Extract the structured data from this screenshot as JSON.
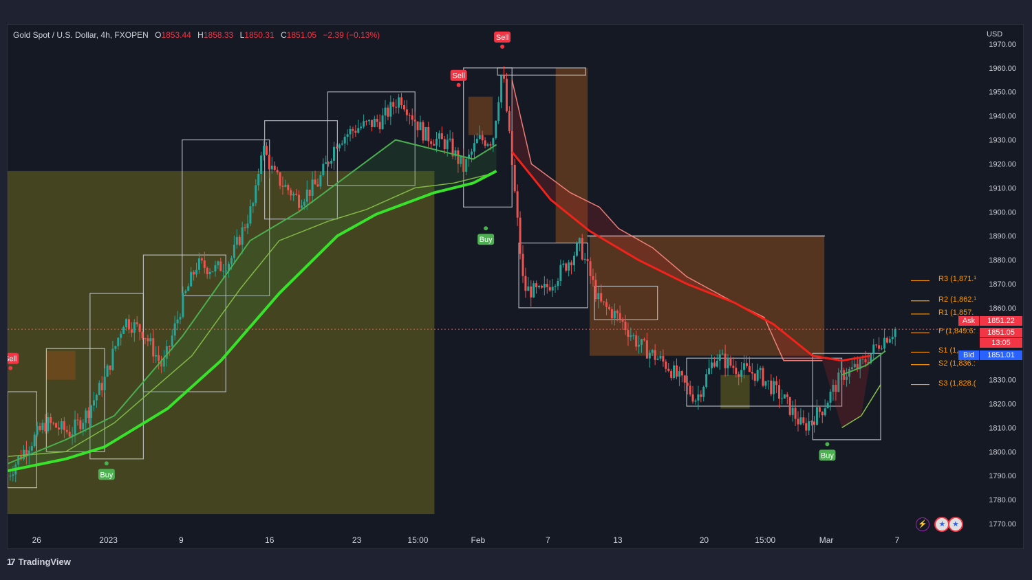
{
  "header": {
    "symbol": "Gold Spot / U.S. Dollar, 4h, FXOPEN",
    "o_label": "O",
    "o": "1853.44",
    "h_label": "H",
    "h": "1858.33",
    "l_label": "L",
    "l": "1850.31",
    "c_label": "C",
    "c": "1851.05",
    "change": "−2.39 (−0.13%)"
  },
  "currency": "USD",
  "brand": {
    "logo": "17",
    "name": "TradingView"
  },
  "pivots": [
    {
      "label": "R3 (1,871.¹",
      "value": 1871.3
    },
    {
      "label": "R2 (1,862.¹",
      "value": 1862.9
    },
    {
      "label": "R1 (1,857.",
      "value": 1857.4
    },
    {
      "label": "P (1,849.6:",
      "value": 1849.6
    },
    {
      "label": "S1 (1,",
      "value": 1841.5
    },
    {
      "label": "S2 (1,836.:",
      "value": 1836.3
    },
    {
      "label": "S3 (1,828.(",
      "value": 1828.0
    }
  ],
  "price_tags": {
    "ask_label": "Ask",
    "ask": "1851.22",
    "last": "1851.05",
    "countdown": "13:05",
    "bid_label": "Bid",
    "bid": "1851.01"
  },
  "colors": {
    "up": "#26a69a",
    "down": "#ef5350",
    "fast_ma": "#4caf50",
    "slow_ma": "#39e22b",
    "bear_ma": "#f2231b",
    "pivot": "#ff9800",
    "bg": "#151924"
  },
  "chart_data": {
    "type": "candlestick",
    "y_axis": {
      "min": 1766,
      "max": 1978,
      "ticks": [
        1970,
        1960,
        1950,
        1940,
        1930,
        1920,
        1910,
        1900,
        1890,
        1880,
        1870,
        1860,
        1850,
        1840,
        1830,
        1820,
        1810,
        1800,
        1790,
        1780,
        1770
      ]
    },
    "x_axis": {
      "ticks": [
        {
          "label": "26",
          "pos": 0.03
        },
        {
          "label": "2023",
          "pos": 0.104
        },
        {
          "label": "9",
          "pos": 0.179
        },
        {
          "label": "16",
          "pos": 0.27
        },
        {
          "label": "23",
          "pos": 0.36
        },
        {
          "label": "15:00",
          "pos": 0.423
        },
        {
          "label": "Feb",
          "pos": 0.485
        },
        {
          "label": "7",
          "pos": 0.557
        },
        {
          "label": "13",
          "pos": 0.629
        },
        {
          "label": "20",
          "pos": 0.718
        },
        {
          "label": "15:00",
          "pos": 0.781
        },
        {
          "label": "Mar",
          "pos": 0.844
        },
        {
          "label": "7",
          "pos": 0.917
        }
      ]
    },
    "price_path": [
      [
        0.0,
        1790
      ],
      [
        0.016,
        1800
      ],
      [
        0.04,
        1812
      ],
      [
        0.065,
        1808
      ],
      [
        0.08,
        1815
      ],
      [
        0.1,
        1830
      ],
      [
        0.12,
        1855
      ],
      [
        0.14,
        1850
      ],
      [
        0.16,
        1835
      ],
      [
        0.18,
        1862
      ],
      [
        0.195,
        1878
      ],
      [
        0.215,
        1876
      ],
      [
        0.23,
        1880
      ],
      [
        0.255,
        1905
      ],
      [
        0.262,
        1928
      ],
      [
        0.275,
        1915
      ],
      [
        0.3,
        1905
      ],
      [
        0.32,
        1912
      ],
      [
        0.34,
        1930
      ],
      [
        0.36,
        1935
      ],
      [
        0.385,
        1938
      ],
      [
        0.405,
        1948
      ],
      [
        0.43,
        1932
      ],
      [
        0.455,
        1928
      ],
      [
        0.47,
        1918
      ],
      [
        0.485,
        1930
      ],
      [
        0.5,
        1930
      ],
      [
        0.51,
        1960
      ],
      [
        0.52,
        1920
      ],
      [
        0.532,
        1868
      ],
      [
        0.55,
        1866
      ],
      [
        0.57,
        1875
      ],
      [
        0.59,
        1886
      ],
      [
        0.61,
        1862
      ],
      [
        0.63,
        1856
      ],
      [
        0.65,
        1845
      ],
      [
        0.68,
        1836
      ],
      [
        0.71,
        1822
      ],
      [
        0.73,
        1840
      ],
      [
        0.75,
        1835
      ],
      [
        0.775,
        1832
      ],
      [
        0.8,
        1822
      ],
      [
        0.82,
        1810
      ],
      [
        0.84,
        1818
      ],
      [
        0.86,
        1832
      ],
      [
        0.88,
        1836
      ],
      [
        0.9,
        1846
      ],
      [
        0.915,
        1851
      ]
    ],
    "slow_ma": [
      [
        0.0,
        1792
      ],
      [
        0.06,
        1797
      ],
      [
        0.1,
        1802
      ],
      [
        0.165,
        1818
      ],
      [
        0.22,
        1838
      ],
      [
        0.28,
        1866
      ],
      [
        0.34,
        1890
      ],
      [
        0.38,
        1899
      ],
      [
        0.44,
        1908
      ],
      [
        0.48,
        1912
      ],
      [
        0.504,
        1917
      ]
    ],
    "fast_ma": [
      [
        0.0,
        1795
      ],
      [
        0.06,
        1805
      ],
      [
        0.11,
        1815
      ],
      [
        0.18,
        1848
      ],
      [
        0.25,
        1888
      ],
      [
        0.3,
        1900
      ],
      [
        0.35,
        1915
      ],
      [
        0.4,
        1930
      ],
      [
        0.44,
        1926
      ],
      [
        0.48,
        1922
      ],
      [
        0.504,
        1928
      ]
    ],
    "bear_ma": [
      [
        0.52,
        1925
      ],
      [
        0.56,
        1905
      ],
      [
        0.6,
        1892
      ],
      [
        0.65,
        1880
      ],
      [
        0.7,
        1870
      ],
      [
        0.75,
        1862
      ],
      [
        0.79,
        1853
      ],
      [
        0.83,
        1840
      ],
      [
        0.86,
        1838
      ],
      [
        0.89,
        1840
      ]
    ],
    "bull_ma": [
      [
        0.86,
        1832
      ],
      [
        0.885,
        1836
      ],
      [
        0.905,
        1842
      ]
    ],
    "trail_stop": [
      [
        0.0,
        1798
      ],
      [
        0.06,
        1800
      ],
      [
        0.11,
        1812
      ],
      [
        0.15,
        1826
      ],
      [
        0.19,
        1840
      ],
      [
        0.24,
        1868
      ],
      [
        0.28,
        1888
      ],
      [
        0.33,
        1896
      ],
      [
        0.37,
        1901
      ],
      [
        0.42,
        1910
      ],
      [
        0.46,
        1912
      ],
      [
        0.5,
        1916
      ],
      [
        0.52,
        1955
      ],
      [
        0.54,
        1920
      ],
      [
        0.58,
        1908
      ],
      [
        0.61,
        1902
      ],
      [
        0.63,
        1893
      ],
      [
        0.665,
        1885
      ],
      [
        0.7,
        1873
      ],
      [
        0.75,
        1862
      ],
      [
        0.78,
        1856
      ],
      [
        0.8,
        1838
      ],
      [
        0.84,
        1838
      ],
      [
        0.86,
        1810
      ],
      [
        0.88,
        1815
      ],
      [
        0.9,
        1828
      ]
    ],
    "zones": [
      {
        "x0": 0.0,
        "x1": 0.44,
        "y0": 1774,
        "y1": 1917,
        "color": "#6b6a1e"
      },
      {
        "x0": 0.475,
        "x1": 0.5,
        "y0": 1932,
        "y1": 1948,
        "color": "#8a4a1e"
      },
      {
        "x0": 0.565,
        "x1": 0.598,
        "y0": 1887,
        "y1": 1960,
        "color": "#8a4a1e"
      },
      {
        "x0": 0.6,
        "x1": 0.842,
        "y0": 1840,
        "y1": 1890,
        "color": "#8a4a1e"
      },
      {
        "x0": 0.04,
        "x1": 0.07,
        "y0": 1830,
        "y1": 1842,
        "color": "#8a4a1e"
      },
      {
        "x0": 0.735,
        "x1": 0.765,
        "y0": 1818,
        "y1": 1832,
        "color": "#6b6a1e"
      }
    ],
    "boxes": [
      {
        "x0": 0.0,
        "x1": 0.03,
        "y0": 1785,
        "y1": 1825
      },
      {
        "x0": 0.04,
        "x1": 0.1,
        "y0": 1800,
        "y1": 1843
      },
      {
        "x0": 0.085,
        "x1": 0.14,
        "y0": 1797,
        "y1": 1866
      },
      {
        "x0": 0.14,
        "x1": 0.225,
        "y0": 1825,
        "y1": 1882
      },
      {
        "x0": 0.18,
        "x1": 0.27,
        "y0": 1865,
        "y1": 1930
      },
      {
        "x0": 0.265,
        "x1": 0.34,
        "y0": 1897,
        "y1": 1938
      },
      {
        "x0": 0.33,
        "x1": 0.42,
        "y0": 1911,
        "y1": 1950
      },
      {
        "x0": 0.47,
        "x1": 0.52,
        "y0": 1902,
        "y1": 1960
      },
      {
        "x0": 0.505,
        "x1": 0.596,
        "y0": 1957,
        "y1": 1960
      },
      {
        "x0": 0.527,
        "x1": 0.598,
        "y0": 1860,
        "y1": 1887
      },
      {
        "x0": 0.598,
        "x1": 0.842,
        "y0": 1890,
        "y1": 1890
      },
      {
        "x0": 0.605,
        "x1": 0.67,
        "y0": 1855,
        "y1": 1869
      },
      {
        "x0": 0.7,
        "x1": 0.86,
        "y0": 1819,
        "y1": 1839
      },
      {
        "x0": 0.83,
        "x1": 0.9,
        "y0": 1805,
        "y1": 1841
      }
    ],
    "signals": [
      {
        "label": "Sell",
        "type": "sell",
        "x": 0.003,
        "y": 1832
      },
      {
        "label": "Buy",
        "type": "buy",
        "x": 0.102,
        "y": 1798
      },
      {
        "label": "Sell",
        "type": "sell",
        "x": 0.465,
        "y": 1950
      },
      {
        "label": "Sell",
        "type": "sell",
        "x": 0.51,
        "y": 1966
      },
      {
        "label": "Buy",
        "type": "buy",
        "x": 0.493,
        "y": 1896
      },
      {
        "label": "Buy",
        "type": "buy",
        "x": 0.845,
        "y": 1806
      }
    ]
  }
}
